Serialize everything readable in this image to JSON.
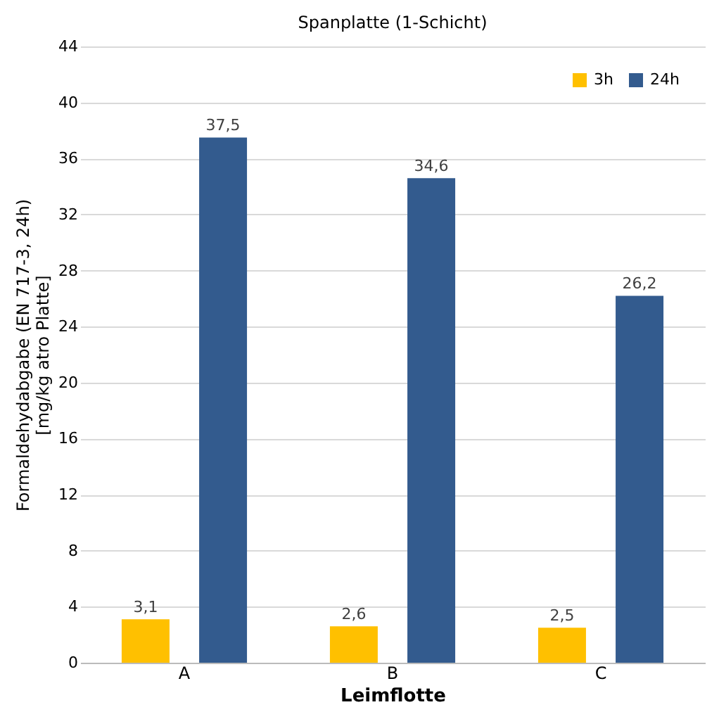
{
  "chart_data": {
    "type": "bar",
    "title": "Spanplatte (1-Schicht)",
    "xlabel": "Leimflotte",
    "ylabel": "Formaldehydabgabe (EN 717-3, 24h)\n[mg/kg atro Platte]",
    "categories": [
      "A",
      "B",
      "C"
    ],
    "series": [
      {
        "name": "3h",
        "color": "#ffc000",
        "values": [
          3.1,
          2.6,
          2.5
        ],
        "value_labels": [
          "3,1",
          "2,6",
          "2,5"
        ]
      },
      {
        "name": "24h",
        "color": "#335b8e",
        "values": [
          37.5,
          34.6,
          26.2
        ],
        "value_labels": [
          "37,5",
          "34,6",
          "26,2"
        ]
      }
    ],
    "ylim": [
      0,
      44
    ],
    "yticks": [
      0,
      4,
      8,
      12,
      16,
      20,
      24,
      28,
      32,
      36,
      40,
      44
    ],
    "grid": "y",
    "legend": "top right"
  }
}
